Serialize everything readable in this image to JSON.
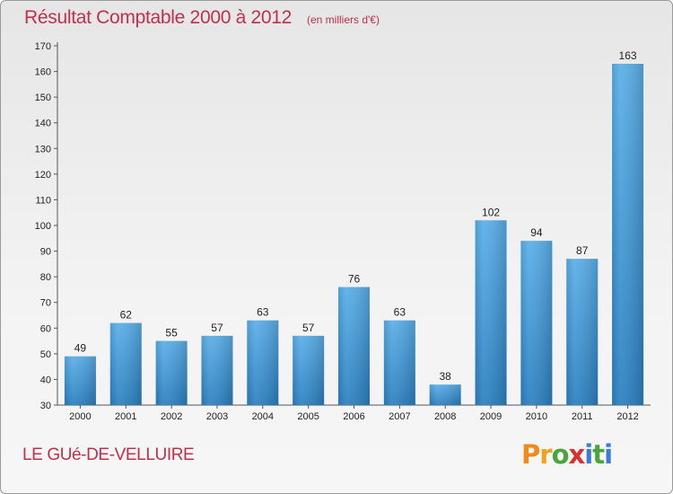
{
  "title": "Résultat Comptable 2000 à 2012",
  "unit": "(en milliers d'€)",
  "commune": "LE GUé-DE-VELLUIRE",
  "logo": {
    "text": "Proxiti",
    "letter_colors": [
      "#f08a1c",
      "#f0a21c",
      "#4aa53c",
      "#d9322c",
      "#3a7bd5",
      "#4aa53c",
      "#3a7bd5"
    ]
  },
  "colors": {
    "bar_light": "#5aaee8",
    "bar_dark": "#2a7fc0",
    "title": "#c0304a"
  },
  "chart_data": {
    "type": "bar",
    "categories": [
      "2000",
      "2001",
      "2002",
      "2003",
      "2004",
      "2005",
      "2006",
      "2007",
      "2008",
      "2009",
      "2010",
      "2011",
      "2012"
    ],
    "values": [
      49,
      62,
      55,
      57,
      63,
      57,
      76,
      63,
      38,
      102,
      94,
      87,
      163
    ],
    "ylim": [
      30,
      170
    ],
    "yticks": [
      30,
      40,
      50,
      60,
      70,
      80,
      90,
      100,
      110,
      120,
      130,
      140,
      150,
      160,
      170
    ],
    "grid": false,
    "legend": "none"
  }
}
